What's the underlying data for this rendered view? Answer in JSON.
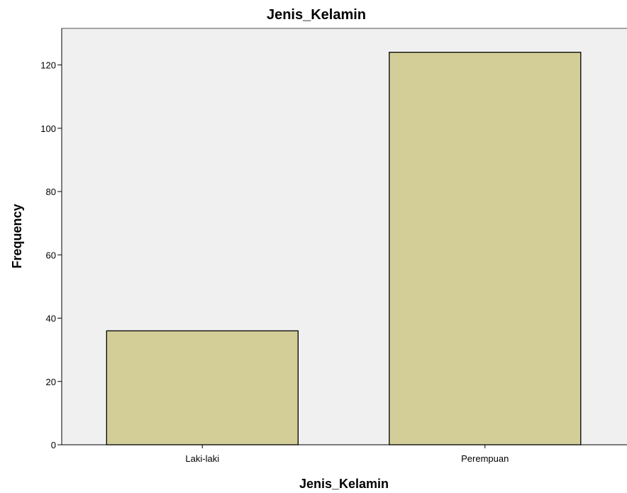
{
  "chart_data": {
    "type": "bar",
    "title": "Jenis_Kelamin",
    "xlabel": "Jenis_Kelamin",
    "ylabel": "Frequency",
    "categories": [
      "Laki-laki",
      "Perempuan"
    ],
    "values": [
      36,
      124
    ],
    "ylim": [
      0,
      132
    ],
    "yticks": [
      0,
      20,
      40,
      60,
      80,
      100,
      120
    ],
    "ytick_labels": [
      "0",
      "20",
      "40",
      "60",
      "80",
      "100",
      "120"
    ],
    "grid": false,
    "legend": "none",
    "colors": {
      "bar_fill": "#d3ce98",
      "bar_stroke": "#000000",
      "plot_background": "#f0f0f0",
      "axis": "#000000"
    }
  }
}
